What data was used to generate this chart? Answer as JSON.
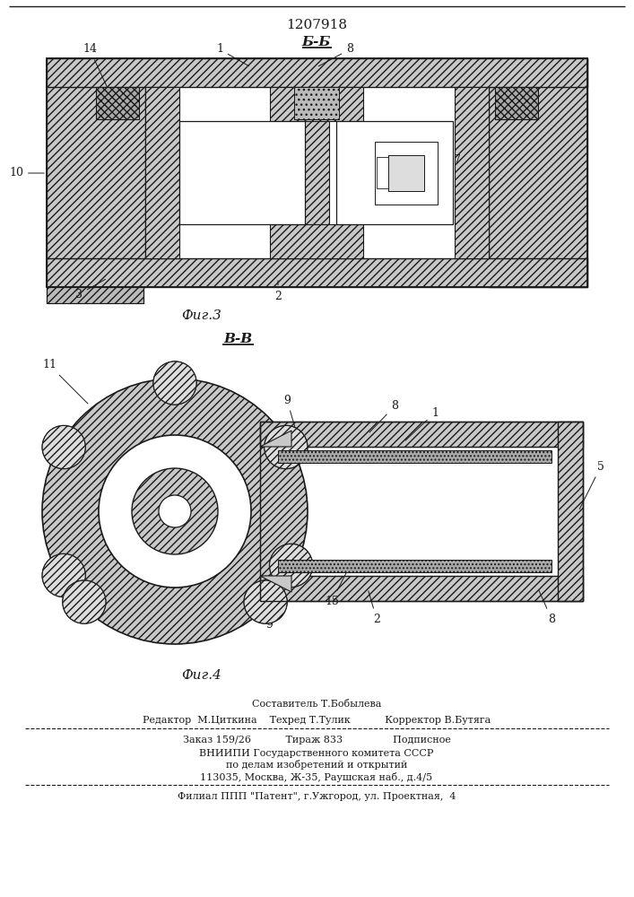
{
  "patent_number": "1207918",
  "fig3_label": "Б-Б",
  "fig4_label": "В-В",
  "fig3_caption": "Фиг.3",
  "fig4_caption": "Фиг.4",
  "footer_line1": "Составитель Т.Бобылева",
  "footer_line2": "Редактор  М.Циткина    Техред Т.Тулик           Корректор В.Бутяга",
  "footer_line3": "Заказ 159/26           Тираж 833                Подписное",
  "footer_line4": "ВНИИПИ Государственного комитета СССР",
  "footer_line5": "по делам изобретений и открытий",
  "footer_line6": "113035, Москва, Ж-35, Раушская наб., д.4/5",
  "footer_line7": "Филиал ППП \"Патент\", г.Ужгород, ул. Проектная,  4",
  "bg_color": "#ffffff",
  "line_color": "#1a1a1a"
}
